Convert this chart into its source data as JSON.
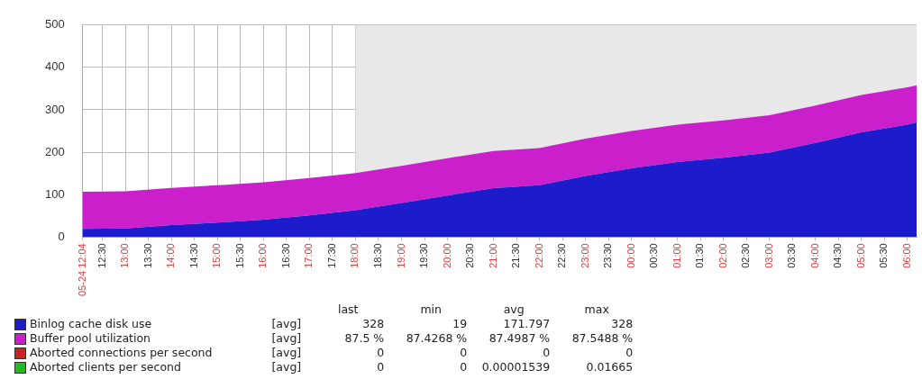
{
  "chart_data": {
    "type": "area",
    "stacked": true,
    "grid": true,
    "legend": "bottom left",
    "xlim": [
      "--05-24T12:04",
      "--05-25T06:12"
    ],
    "xticks": [
      {
        "value": "--05-24T12:04",
        "label": "05-24 12:04"
      },
      {
        "value": "--05-24T12:30",
        "label": "12:30"
      },
      {
        "value": "--05-24T13:00",
        "label": "13:00"
      },
      {
        "value": "--05-24T13:30",
        "label": "13:30"
      },
      {
        "value": "--05-24T14:00",
        "label": "14:00"
      },
      {
        "value": "--05-24T14:30",
        "label": "14:30"
      },
      {
        "value": "--05-24T15:00",
        "label": "15:00"
      },
      {
        "value": "--05-24T15:30",
        "label": "15:30"
      },
      {
        "value": "--05-24T16:00",
        "label": "16:00"
      },
      {
        "value": "--05-24T16:30",
        "label": "16:30"
      },
      {
        "value": "--05-24T17:00",
        "label": "17:00"
      },
      {
        "value": "--05-24T17:30",
        "label": "17:30"
      },
      {
        "value": "--05-24T18:00",
        "label": "18:00"
      },
      {
        "value": "--05-24T18:30",
        "label": "18:30"
      },
      {
        "value": "--05-24T19:00",
        "label": "19:00"
      },
      {
        "value": "--05-24T19:30",
        "label": "19:30"
      },
      {
        "value": "--05-24T20:00",
        "label": "20:00"
      },
      {
        "value": "--05-24T20:30",
        "label": "20:30"
      },
      {
        "value": "--05-24T21:00",
        "label": "21:00"
      },
      {
        "value": "--05-24T21:30",
        "label": "21:30"
      },
      {
        "value": "--05-24T22:00",
        "label": "22:00"
      },
      {
        "value": "--05-24T22:30",
        "label": "22:30"
      },
      {
        "value": "--05-24T23:00",
        "label": "23:00"
      },
      {
        "value": "--05-24T23:30",
        "label": "23:30"
      },
      {
        "value": "--05-25T00:00",
        "label": "00:00"
      },
      {
        "value": "--05-25T00:30",
        "label": "00:30"
      },
      {
        "value": "--05-25T01:00",
        "label": "01:00"
      },
      {
        "value": "--05-25T01:30",
        "label": "01:30"
      },
      {
        "value": "--05-25T02:00",
        "label": "02:00"
      },
      {
        "value": "--05-25T02:30",
        "label": "02:30"
      },
      {
        "value": "--05-25T03:00",
        "label": "03:00"
      },
      {
        "value": "--05-25T03:30",
        "label": "03:30"
      },
      {
        "value": "--05-25T04:00",
        "label": "04:00"
      },
      {
        "value": "--05-25T04:30",
        "label": "04:30"
      },
      {
        "value": "--05-25T05:00",
        "label": "05:00"
      },
      {
        "value": "--05-25T05:30",
        "label": "05:30"
      },
      {
        "value": "--05-25T06:00",
        "label": "06:00"
      }
    ],
    "ylim": [
      0,
      500
    ],
    "yticks": [
      0,
      100,
      200,
      300,
      400,
      500
    ],
    "x": [
      "--05-24T12:04",
      "--05-24T13:00",
      "--05-24T14:00",
      "--05-24T15:00",
      "--05-24T16:00",
      "--05-24T17:00",
      "--05-24T18:00",
      "--05-24T19:00",
      "--05-24T20:00",
      "--05-24T21:00",
      "--05-24T22:00",
      "--05-24T23:00",
      "--05-25T00:00",
      "--05-25T01:00",
      "--05-25T02:00",
      "--05-25T03:00",
      "--05-25T04:00",
      "--05-25T05:00",
      "--05-25T06:00",
      "--05-25T06:12"
    ],
    "series": [
      {
        "name": "Binlog cache disk use",
        "color": "#1c1ccc",
        "values": [
          19,
          20,
          28,
          34,
          41,
          51,
          63,
          80,
          98,
          115,
          122,
          144,
          162,
          177,
          187,
          199,
          222,
          247,
          265,
          270
        ]
      },
      {
        "name": "Buffer pool utilization",
        "color": "#cc1fcc",
        "values": [
          88,
          88,
          88,
          88,
          88,
          88,
          88,
          88,
          88,
          88,
          88,
          88,
          88,
          88,
          88,
          88,
          88,
          88,
          88,
          88
        ]
      },
      {
        "name": "Aborted connections per second",
        "color": "#cc2222",
        "values": [
          null,
          null,
          null,
          null,
          null,
          null,
          null,
          null,
          null,
          null,
          null,
          null,
          null,
          null,
          null,
          null,
          null,
          null,
          null,
          null
        ]
      },
      {
        "name": "Aborted clients per second",
        "color": "#22bb22",
        "values": [
          null,
          null,
          null,
          null,
          null,
          null,
          null,
          null,
          null,
          null,
          null,
          null,
          null,
          null,
          null,
          null,
          null,
          null,
          null,
          null
        ]
      }
    ],
    "bands": [
      {
        "axis": "x",
        "from": "--05-24T18:00",
        "to": "--05-25T06:12",
        "color": "#e8e8e8"
      }
    ],
    "annotations": [
      "last",
      "min",
      "avg",
      "max",
      "[avg]",
      "328",
      "19",
      "171.797",
      "328",
      "[avg]",
      "87.5 %",
      "87.4268 %",
      "87.4987 %",
      "87.5488 %",
      "[avg]",
      "0",
      "0",
      "0",
      "0",
      "[avg]",
      "0",
      "0",
      "0.00001539",
      "0.01665"
    ]
  }
}
